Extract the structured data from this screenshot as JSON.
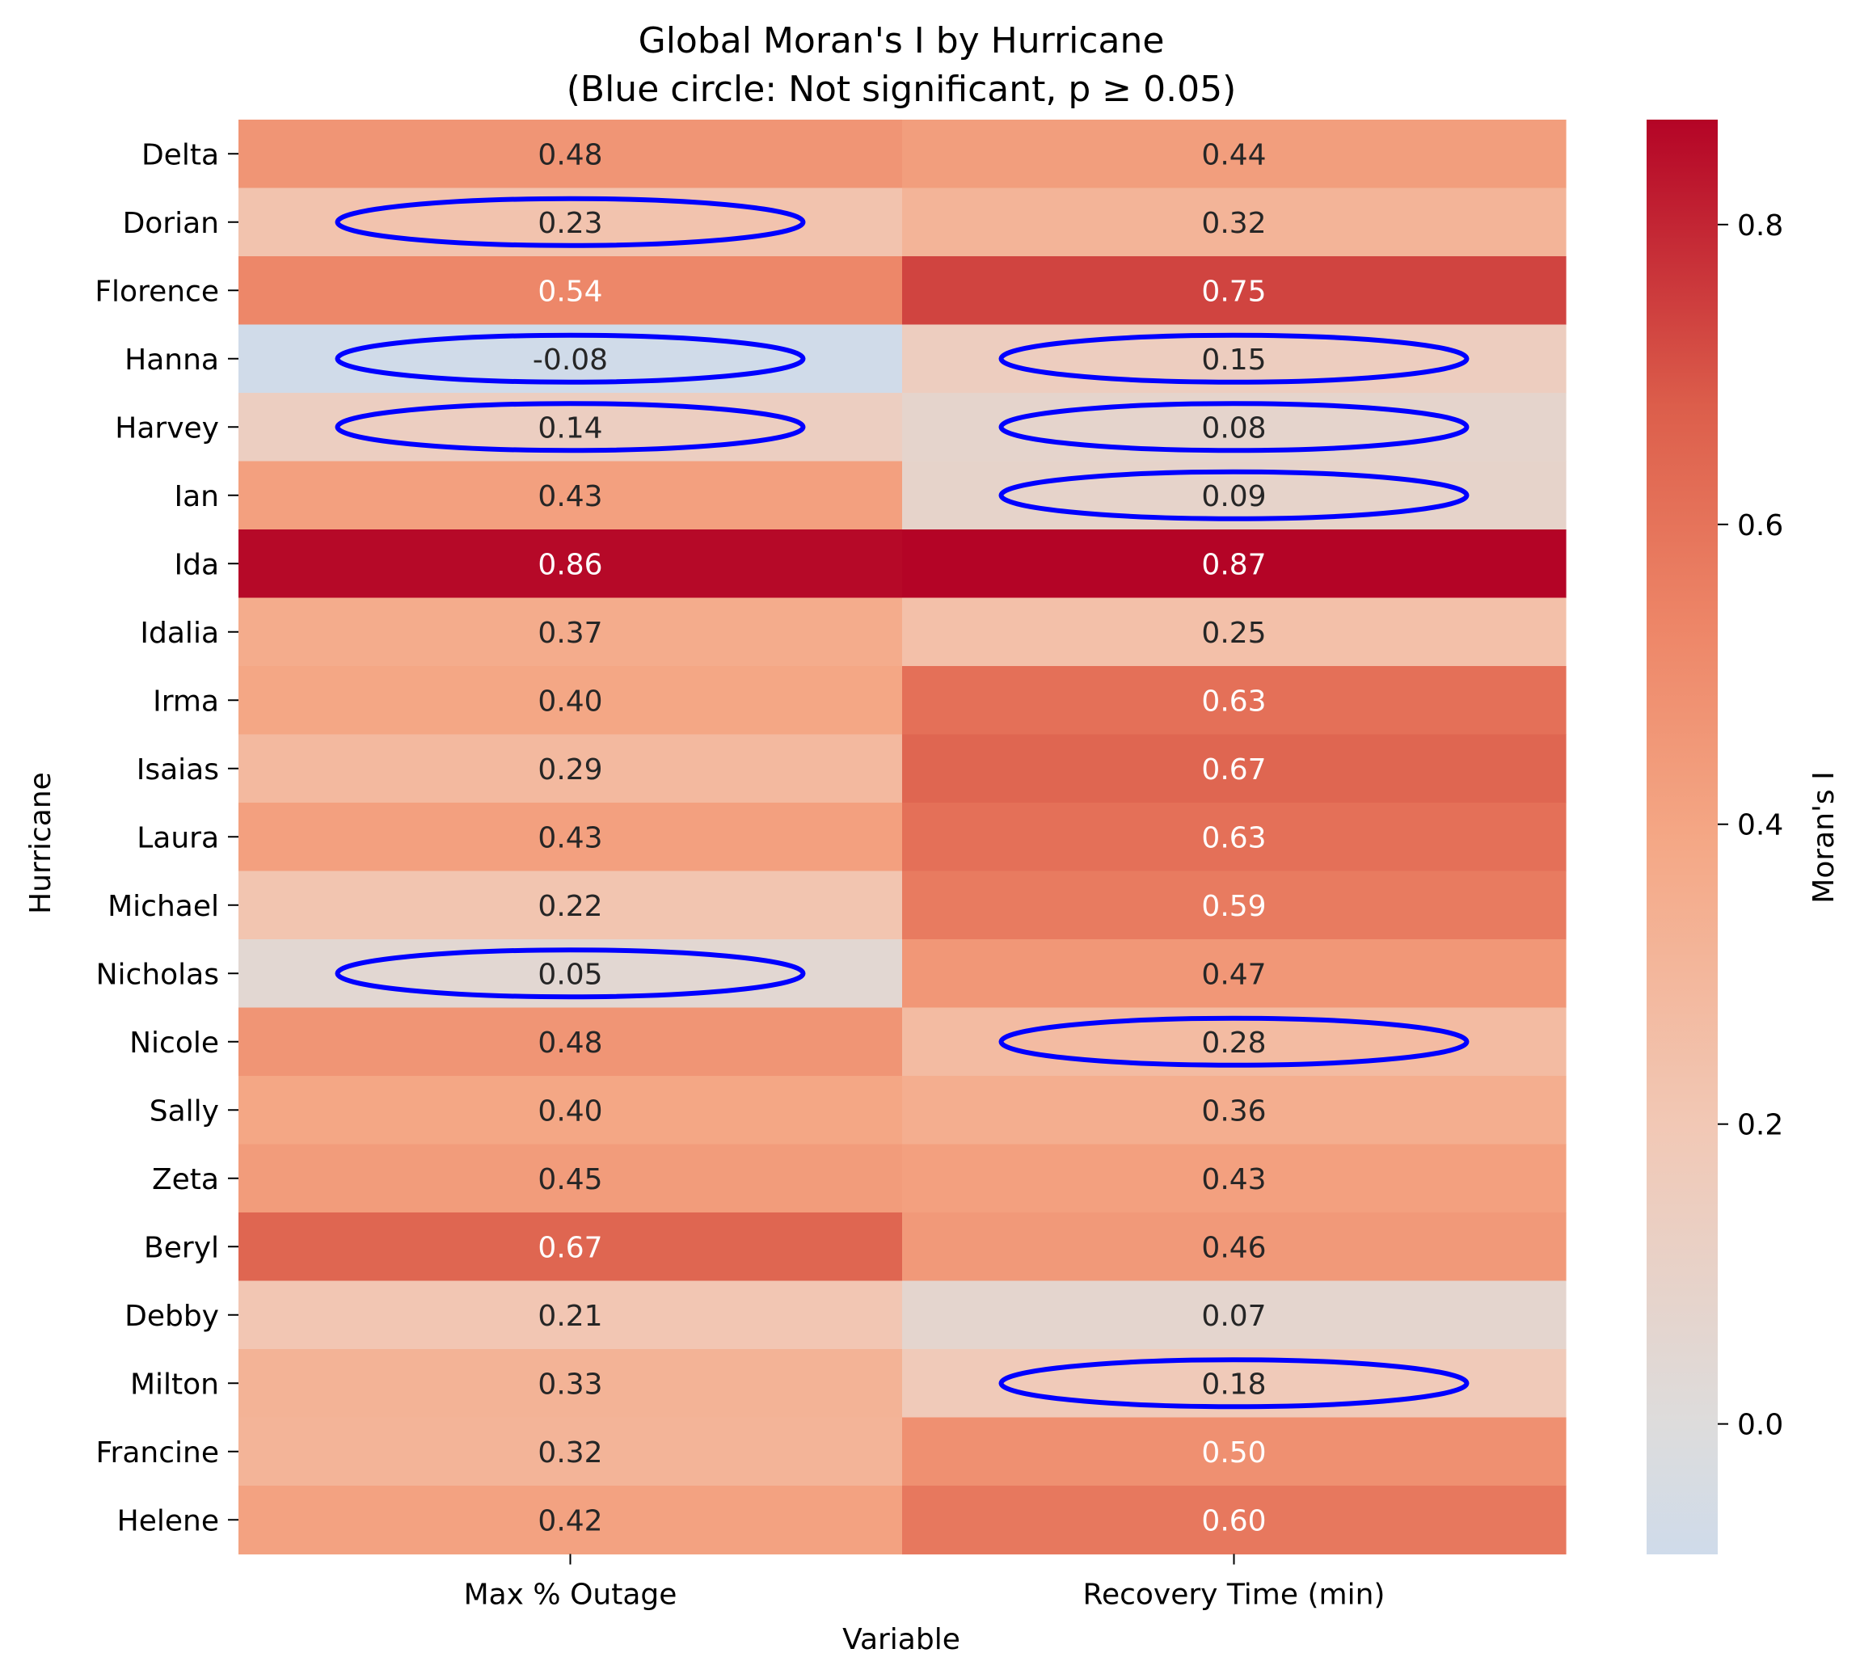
{
  "chart_data": {
    "type": "heatmap",
    "title": "Global Moran's I by Hurricane",
    "subtitle": "(Blue circle: Not significant, p ≥ 0.05)",
    "xlabel": "Variable",
    "ylabel": "Hurricane",
    "colorbar_label": "Moran's I",
    "colormap": "coolwarm",
    "color_range": [
      -0.087,
      0.87
    ],
    "colorbar_ticks": [
      "0.0",
      "0.2",
      "0.4",
      "0.6",
      "0.8"
    ],
    "columns": [
      "Max % Outage",
      "Recovery Time (min)"
    ],
    "rows": [
      "Delta",
      "Dorian",
      "Florence",
      "Hanna",
      "Harvey",
      "Ian",
      "Ida",
      "Idalia",
      "Irma",
      "Isaias",
      "Laura",
      "Michael",
      "Nicholas",
      "Nicole",
      "Sally",
      "Zeta",
      "Beryl",
      "Debby",
      "Milton",
      "Francine",
      "Helene"
    ],
    "values": [
      [
        0.48,
        0.44
      ],
      [
        0.23,
        0.32
      ],
      [
        0.54,
        0.75
      ],
      [
        -0.08,
        0.15
      ],
      [
        0.14,
        0.08
      ],
      [
        0.43,
        0.09
      ],
      [
        0.86,
        0.87
      ],
      [
        0.37,
        0.25
      ],
      [
        0.4,
        0.63
      ],
      [
        0.29,
        0.67
      ],
      [
        0.43,
        0.63
      ],
      [
        0.22,
        0.59
      ],
      [
        0.05,
        0.47
      ],
      [
        0.48,
        0.28
      ],
      [
        0.4,
        0.36
      ],
      [
        0.45,
        0.43
      ],
      [
        0.67,
        0.46
      ],
      [
        0.21,
        0.07
      ],
      [
        0.33,
        0.18
      ],
      [
        0.32,
        0.5
      ],
      [
        0.42,
        0.6
      ]
    ],
    "labels": [
      [
        "0.48",
        "0.44"
      ],
      [
        "0.23",
        "0.32"
      ],
      [
        "0.54",
        "0.75"
      ],
      [
        "-0.08",
        "0.15"
      ],
      [
        "0.14",
        "0.08"
      ],
      [
        "0.43",
        "0.09"
      ],
      [
        "0.86",
        "0.87"
      ],
      [
        "0.37",
        "0.25"
      ],
      [
        "0.40",
        "0.63"
      ],
      [
        "0.29",
        "0.67"
      ],
      [
        "0.43",
        "0.63"
      ],
      [
        "0.22",
        "0.59"
      ],
      [
        "0.05",
        "0.47"
      ],
      [
        "0.48",
        "0.28"
      ],
      [
        "0.40",
        "0.36"
      ],
      [
        "0.45",
        "0.43"
      ],
      [
        "0.67",
        "0.46"
      ],
      [
        "0.21",
        "0.07"
      ],
      [
        "0.33",
        "0.18"
      ],
      [
        "0.32",
        "0.50"
      ],
      [
        "0.42",
        "0.60"
      ]
    ],
    "not_significant": [
      [
        false,
        false
      ],
      [
        true,
        false
      ],
      [
        false,
        false
      ],
      [
        true,
        true
      ],
      [
        true,
        true
      ],
      [
        false,
        true
      ],
      [
        false,
        false
      ],
      [
        false,
        false
      ],
      [
        false,
        false
      ],
      [
        false,
        false
      ],
      [
        false,
        false
      ],
      [
        false,
        false
      ],
      [
        true,
        false
      ],
      [
        false,
        true
      ],
      [
        false,
        false
      ],
      [
        false,
        false
      ],
      [
        false,
        false
      ],
      [
        false,
        false
      ],
      [
        false,
        true
      ],
      [
        false,
        false
      ],
      [
        false,
        false
      ]
    ],
    "marker_color": "#0000ff"
  }
}
